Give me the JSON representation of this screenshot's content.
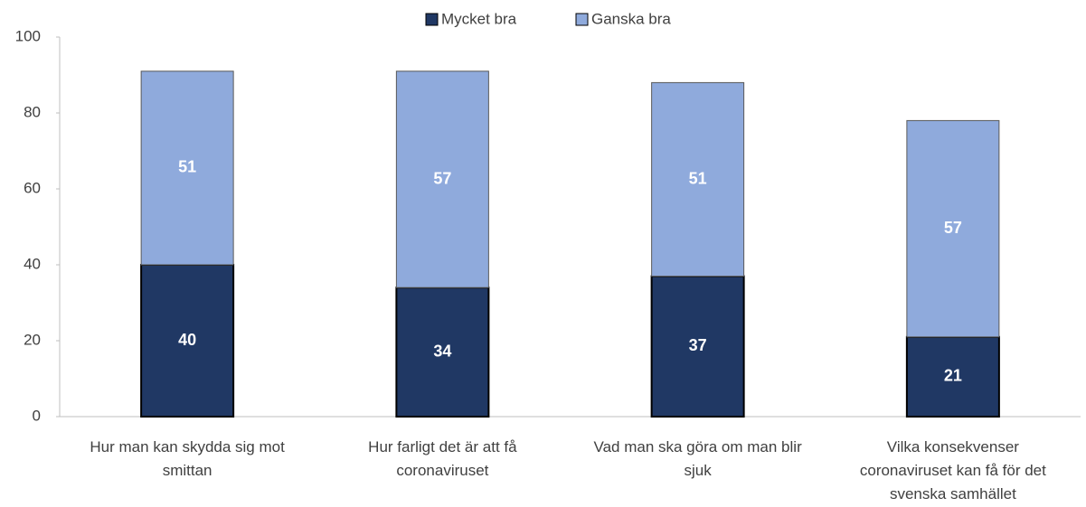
{
  "chart_data": {
    "type": "stacked_bar",
    "categories": [
      "Hur man kan skydda sig mot smittan",
      "Hur farligt det är att få coronaviruset",
      "Vad man ska göra om man blir sjuk",
      "Vilka konsekvenser coronaviruset kan få för det svenska samhället"
    ],
    "series": [
      {
        "name": "Mycket bra",
        "color": "#203864",
        "values": [
          40,
          34,
          37,
          21
        ]
      },
      {
        "name": "Ganska bra",
        "color": "#8faadc",
        "values": [
          51,
          57,
          51,
          57
        ]
      }
    ],
    "ylim": [
      0,
      100
    ],
    "yticks": [
      0,
      20,
      40,
      60,
      80,
      100
    ],
    "grid": false,
    "legend": "top"
  }
}
